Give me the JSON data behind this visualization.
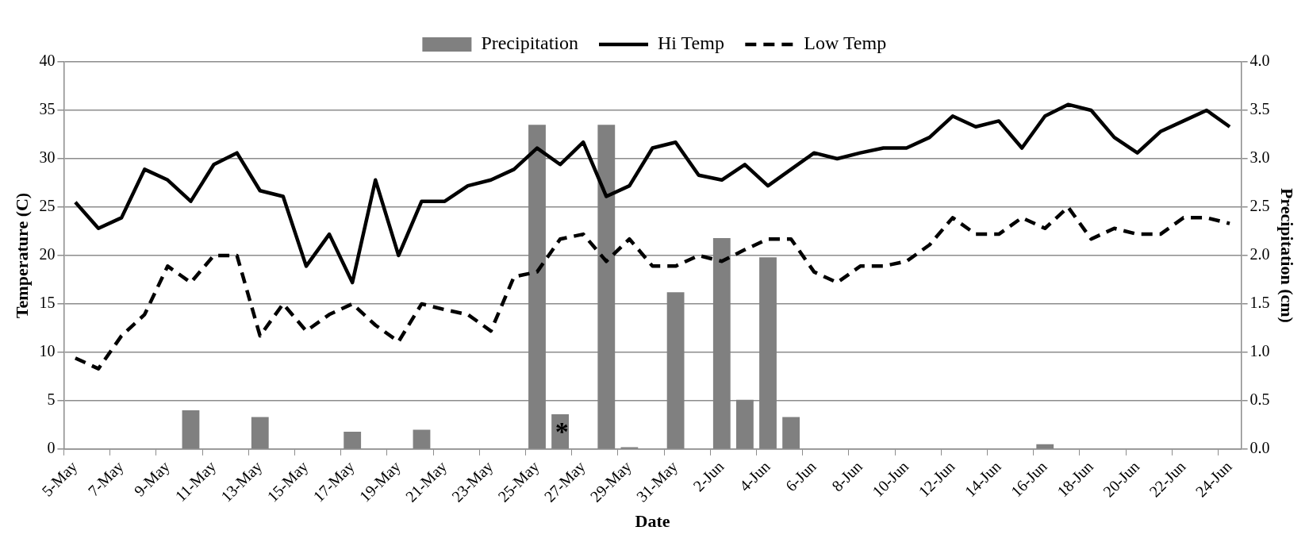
{
  "chart_data": {
    "type": "bar",
    "xlabel": "Date",
    "ylabel": "Temperature (C)",
    "y2label": "Precipitation (cm)",
    "categories": [
      "5-May",
      null,
      "7-May",
      null,
      "9-May",
      null,
      "11-May",
      null,
      "13-May",
      null,
      "15-May",
      null,
      "17-May",
      null,
      "19-May",
      null,
      "21-May",
      null,
      "23-May",
      null,
      "25-May",
      null,
      "27-May",
      null,
      "29-May",
      null,
      "31-May",
      null,
      "2-Jun",
      null,
      "4-Jun",
      null,
      "6-Jun",
      null,
      "8-Jun",
      null,
      "10-Jun",
      null,
      "12-Jun",
      null,
      "14-Jun",
      null,
      "16-Jun",
      null,
      "18-Jun",
      null,
      "20-Jun",
      null,
      "22-Jun",
      null,
      "24-Jun"
    ],
    "series": [
      {
        "name": "Precipitation",
        "axis": "y2",
        "color": "#808080",
        "values": [
          0,
          0,
          0,
          0,
          0,
          0.4,
          0,
          0,
          0.33,
          0,
          0,
          0,
          0.18,
          0,
          0,
          0.2,
          0,
          0,
          0,
          0,
          3.35,
          0.36,
          0,
          3.35,
          0.02,
          0,
          1.62,
          0,
          2.18,
          0.51,
          1.98,
          0.33,
          0,
          0,
          0,
          0,
          0,
          0,
          0,
          0,
          0,
          0,
          0.05,
          0,
          0,
          0,
          0,
          0,
          0,
          0,
          0
        ]
      },
      {
        "name": "Hi Temp",
        "type": "line",
        "axis": "y",
        "color": "#000000",
        "line_style": "solid",
        "values": [
          25.5,
          22.8,
          23.9,
          28.9,
          27.8,
          25.6,
          29.4,
          30.6,
          26.7,
          26.1,
          18.9,
          22.2,
          17.2,
          27.8,
          20.0,
          25.6,
          25.6,
          27.2,
          27.8,
          28.9,
          31.1,
          29.4,
          31.7,
          26.1,
          27.2,
          31.1,
          31.7,
          28.3,
          27.8,
          29.4,
          27.2,
          28.9,
          30.6,
          30.0,
          30.6,
          31.1,
          31.1,
          32.2,
          34.4,
          33.3,
          33.9,
          31.1,
          34.4,
          35.6,
          35.0,
          32.2,
          30.6,
          32.8,
          33.9,
          35.0,
          33.3
        ]
      },
      {
        "name": "Low Temp",
        "type": "line",
        "axis": "y",
        "color": "#000000",
        "line_style": "dashed",
        "values": [
          9.4,
          8.3,
          11.7,
          13.9,
          18.9,
          17.2,
          20.0,
          20.0,
          11.7,
          15.0,
          12.2,
          13.9,
          15.0,
          12.8,
          11.1,
          15.0,
          14.4,
          13.9,
          12.2,
          17.8,
          18.3,
          21.7,
          22.2,
          19.4,
          21.7,
          18.9,
          18.9,
          20.0,
          19.4,
          20.6,
          21.7,
          21.7,
          18.3,
          17.2,
          18.9,
          18.9,
          19.4,
          21.1,
          23.9,
          22.2,
          22.2,
          23.9,
          22.8,
          25.0,
          21.7,
          22.8,
          22.2,
          22.2,
          23.9,
          23.9,
          23.3
        ]
      }
    ],
    "ylim": [
      0,
      40
    ],
    "yticks": [
      0,
      5,
      10,
      15,
      20,
      25,
      30,
      35,
      40
    ],
    "y2lim": [
      0,
      4
    ],
    "y2ticks": [
      {
        "value": 0,
        "label": "0.0"
      },
      {
        "value": 0.5,
        "label": "0.5"
      },
      {
        "value": 1,
        "label": "1.0"
      },
      {
        "value": 1.5,
        "label": "1.5"
      },
      {
        "value": 2,
        "label": "2.0"
      },
      {
        "value": 2.5,
        "label": "2.5"
      },
      {
        "value": 3,
        "label": "3.0"
      },
      {
        "value": 3.5,
        "label": "3.5"
      },
      {
        "value": 4,
        "label": "4.0"
      }
    ],
    "grid": "y",
    "legend": "top",
    "marker": "none",
    "annotations": [
      "*"
    ]
  }
}
